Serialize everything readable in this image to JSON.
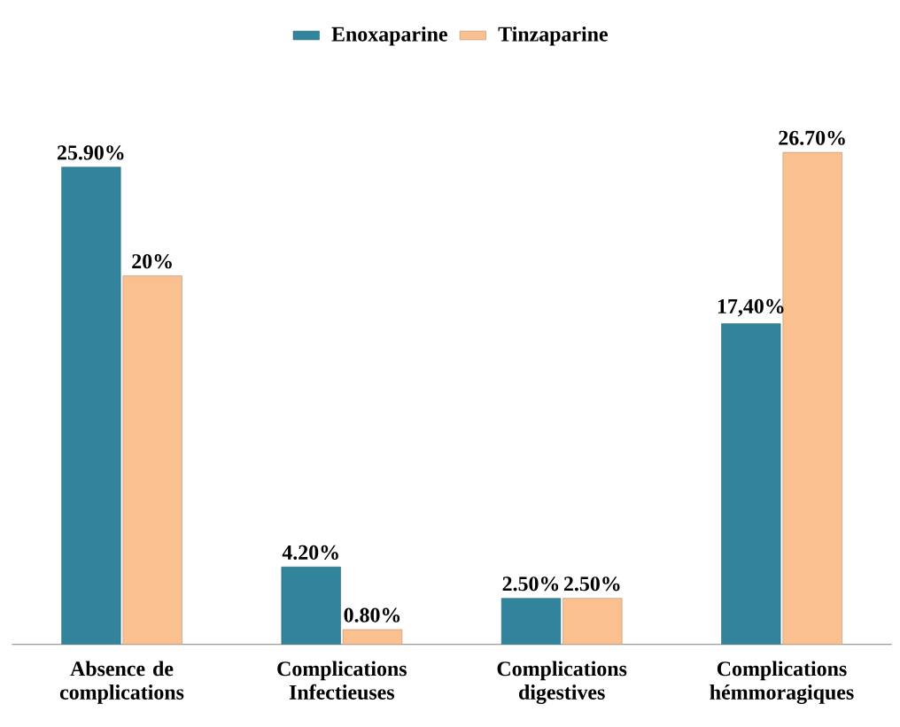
{
  "chart_data": {
    "type": "bar",
    "categories": [
      "Absence de complications",
      "Complications Infectieuses",
      "Complications digestives",
      "Complications hémmoragiques"
    ],
    "series": [
      {
        "name": "Enoxaparine",
        "color": "#31849b",
        "values": [
          25.9,
          4.2,
          2.5,
          17.4
        ],
        "value_labels": [
          "25.90%",
          "4.20%",
          "2.50%",
          "17,40%"
        ]
      },
      {
        "name": "Tinzaparine",
        "color": "#fac090",
        "values": [
          20,
          0.8,
          2.5,
          26.7
        ],
        "value_labels": [
          "20%",
          "0.80%",
          "2.50%",
          "26.70%"
        ]
      }
    ],
    "legend": "top"
  }
}
